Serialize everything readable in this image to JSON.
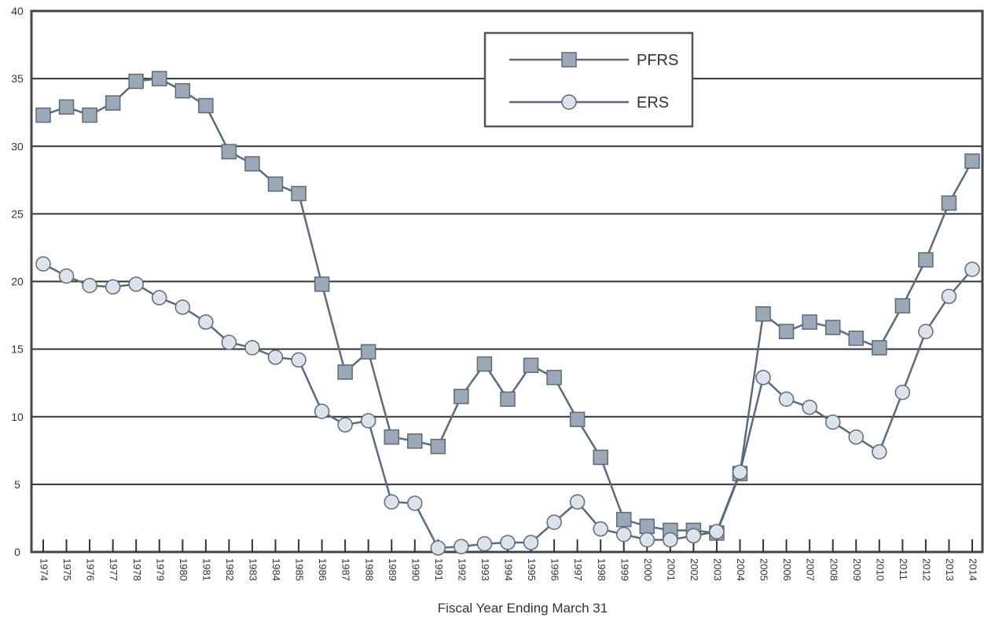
{
  "chart_data": {
    "type": "line",
    "x_label": "Fiscal Year Ending March 31",
    "categories": [
      "1974",
      "1975",
      "1976",
      "1977",
      "1978",
      "1979",
      "1980",
      "1981",
      "1982",
      "1983",
      "1984",
      "1985",
      "1986",
      "1987",
      "1988",
      "1989",
      "1990",
      "1991",
      "1992",
      "1993",
      "1994",
      "1995",
      "1996",
      "1997",
      "1998",
      "1999",
      "2000",
      "2001",
      "2002",
      "2003",
      "2004",
      "2005",
      "2006",
      "2007",
      "2008",
      "2009",
      "2010",
      "2011",
      "2012",
      "2013",
      "2014"
    ],
    "series": [
      {
        "name": "PFRS",
        "color": "#5a6b7b",
        "marker": "square",
        "marker_fill": "#9aa8b8",
        "values": [
          32.3,
          32.9,
          32.3,
          33.2,
          34.8,
          35.0,
          34.1,
          33.0,
          29.6,
          28.7,
          27.2,
          26.5,
          19.8,
          13.3,
          14.8,
          8.5,
          8.2,
          7.8,
          11.5,
          13.9,
          11.3,
          13.8,
          12.9,
          9.8,
          7.0,
          2.4,
          1.9,
          1.6,
          1.6,
          1.4,
          5.8,
          17.6,
          16.3,
          17.0,
          16.6,
          15.8,
          15.1,
          18.2,
          21.6,
          25.8,
          28.9
        ]
      },
      {
        "name": "ERS",
        "color": "#5a6b7b",
        "marker": "circle",
        "marker_fill": "#dde3ea",
        "values": [
          21.3,
          20.4,
          19.7,
          19.6,
          19.8,
          18.8,
          18.1,
          17.0,
          15.5,
          15.1,
          14.4,
          14.2,
          10.4,
          9.4,
          9.7,
          3.7,
          3.6,
          0.3,
          0.4,
          0.6,
          0.7,
          0.7,
          2.2,
          3.7,
          1.7,
          1.3,
          0.9,
          0.9,
          1.2,
          1.5,
          5.9,
          12.9,
          11.3,
          10.7,
          9.6,
          8.5,
          7.4,
          11.8,
          16.3,
          18.9,
          20.9
        ]
      }
    ],
    "ylim": [
      0,
      40
    ],
    "yticks": [
      0,
      5,
      10,
      15,
      20,
      25,
      30,
      35,
      40
    ],
    "grid": true
  }
}
